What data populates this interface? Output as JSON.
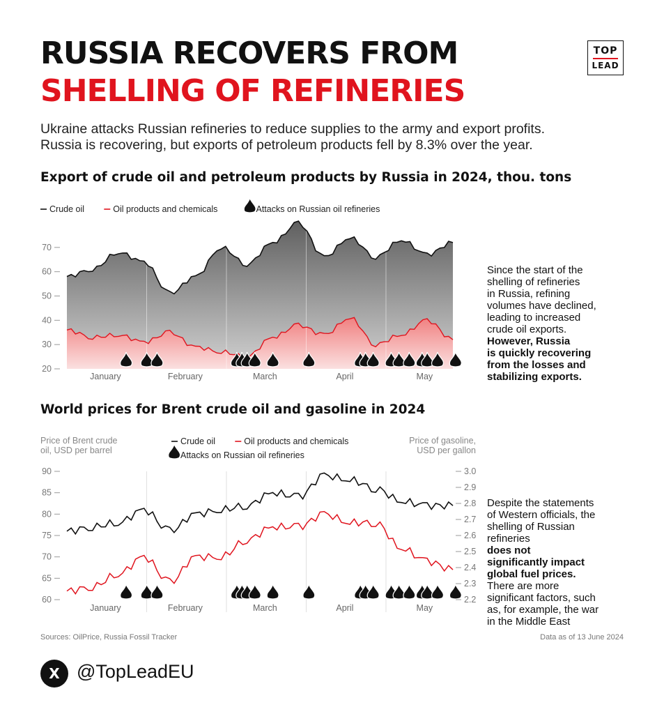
{
  "header": {
    "title_line1": "RUSSIA RECOVERS FROM",
    "title_line2": "SHELLING OF REFINERIES",
    "logo_top": "TOP",
    "logo_bottom": "LEAD",
    "intro_line1": "Ukraine attacks Russian refineries to reduce supplies to the army and export profits.",
    "intro_line2": "Russia is recovering, but exports of petroleum products fell by 8.3% over the year."
  },
  "chart_data": [
    {
      "type": "area",
      "title": "Export of crude oil and petroleum products by Russia in 2024, thou. tons",
      "legend": [
        "Crude oil",
        "Oil products and chemicals",
        "Attacks on Russian oil refineries"
      ],
      "legend_position": "top-left",
      "months": [
        "January",
        "February",
        "March",
        "April",
        "May"
      ],
      "y_ticks": [
        20,
        30,
        40,
        50,
        60,
        70
      ],
      "ylim": [
        20,
        80
      ],
      "x": [
        0,
        10,
        20,
        30,
        40,
        50,
        60,
        70,
        80,
        90,
        100,
        110,
        120,
        130,
        140,
        150
      ],
      "series": [
        {
          "name": "Crude oil",
          "color": "#111111",
          "values": [
            58,
            61,
            68,
            64,
            51,
            58,
            70,
            63,
            72,
            80,
            66,
            74,
            66,
            73,
            67,
            72
          ]
        },
        {
          "name": "Oil products and chemicals",
          "color": "#e0141e",
          "values": [
            36,
            33,
            34,
            31,
            35,
            29,
            27,
            25,
            33,
            38,
            34,
            41,
            30,
            34,
            40,
            32
          ]
        }
      ],
      "attacks": [
        23,
        31,
        35,
        66,
        68,
        70,
        73,
        80,
        94,
        114,
        116,
        119,
        126,
        129,
        133,
        138,
        140,
        144,
        151
      ],
      "grid": false
    },
    {
      "type": "line",
      "title": "World prices for Brent crude oil and gasoline in 2024",
      "y_left_label": [
        "Price of Brent crude",
        "oil, USD per barrel"
      ],
      "y_right_label": [
        "Price of gasoline,",
        "USD per gallon"
      ],
      "legend": [
        "Crude oil",
        "Oil products and chemicals",
        "Attacks on Russian oil refineries"
      ],
      "legend_position": "top-center",
      "months": [
        "January",
        "February",
        "March",
        "April",
        "May"
      ],
      "y_left_ticks": [
        60,
        65,
        70,
        75,
        80,
        85,
        90
      ],
      "y_right_ticks": [
        "2.2",
        "2.3",
        "2.4",
        "2.5",
        "2.6",
        "2.7",
        "2.8",
        "2.9",
        "3.0"
      ],
      "ylim": [
        60,
        90
      ],
      "ylim_right": [
        2.2,
        3.0
      ],
      "x": [
        0,
        10,
        20,
        30,
        40,
        50,
        60,
        70,
        80,
        90,
        100,
        110,
        120,
        130,
        140,
        150
      ],
      "series": [
        {
          "name": "Crude oil",
          "color": "#111111",
          "values": [
            76,
            77,
            78,
            81,
            76,
            80,
            81,
            82,
            85,
            84,
            89,
            88,
            86,
            83,
            82,
            82
          ]
        },
        {
          "name": "Oil products and chemicals",
          "color": "#e0141e",
          "values": [
            62,
            63,
            66,
            70,
            64,
            70,
            70,
            74,
            77,
            77,
            80,
            78,
            78,
            72,
            69,
            67
          ]
        }
      ],
      "attacks": [
        23,
        31,
        35,
        66,
        68,
        70,
        73,
        80,
        94,
        114,
        116,
        119,
        126,
        129,
        133,
        138,
        140,
        144,
        151
      ],
      "grid": false
    }
  ],
  "side1": {
    "p1": "Since the start of the",
    "p2": "shelling of refineries",
    "p3": "in Russia, refining",
    "p4": "volumes have declined,",
    "p5": "leading to increased",
    "p6": "crude oil exports.",
    "b1": "However, Russia",
    "b2": "is quickly recovering",
    "b3": "from the losses and",
    "b4": "stabilizing exports."
  },
  "side2": {
    "p1": "Despite the statements",
    "p2": "of Western officials, the",
    "p3": "shelling of Russian",
    "p4a": "refineries ",
    "b1": "does not",
    "b2": "significantly impact",
    "b3": "global fuel prices.",
    "p5": "There are more",
    "p6": "significant factors, such",
    "p7": "as, for example, the war",
    "p8": "in the Middle East"
  },
  "footer": {
    "sources": "Sources: OilPrice, Russia Fossil Tracker",
    "as_of": "Data as of 13 June 2024",
    "x_glyph": "X",
    "handle": "@TopLeadEU"
  }
}
